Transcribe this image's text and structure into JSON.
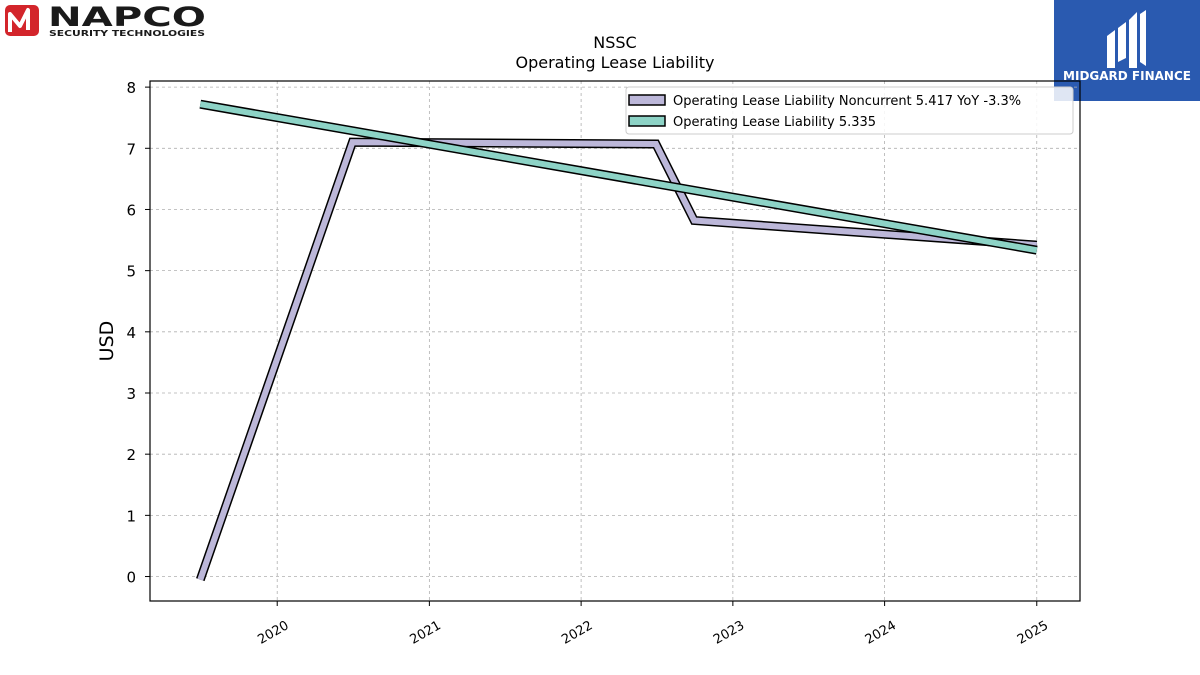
{
  "logos": {
    "left": {
      "name": "NAPCO",
      "tagline": "SECURITY TECHNOLOGIES"
    },
    "right": {
      "name": "MIDGARD FINANCE",
      "color": "#2a5ab0"
    }
  },
  "chart_data": {
    "type": "line",
    "title": "NSSC",
    "subtitle": "Operating Lease Liability",
    "xlabel": "",
    "ylabel": "USD",
    "xlim": [
      "2019-03-01",
      "2025-04-15"
    ],
    "ylim": [
      -0.4,
      8.1
    ],
    "x_ticks": [
      "2020",
      "2021",
      "2022",
      "2023",
      "2024",
      "2025"
    ],
    "y_ticks": [
      0,
      1,
      2,
      3,
      4,
      5,
      6,
      7,
      8
    ],
    "grid": true,
    "legend_position": "top-right",
    "series": [
      {
        "name": "Operating Lease Liability Noncurrent",
        "legend_label": "Operating Lease Liability Noncurrent  5.417 YoY -3.3%",
        "color": "#bcb7d9",
        "points": [
          {
            "x": "2019-06-30",
            "y": -0.05
          },
          {
            "x": "2020-06-30",
            "y": 7.1
          },
          {
            "x": "2022-06-30",
            "y": 7.07
          },
          {
            "x": "2022-09-30",
            "y": 5.82
          },
          {
            "x": "2025-01-01",
            "y": 5.417
          }
        ]
      },
      {
        "name": "Operating Lease Liability",
        "legend_label": "Operating Lease Liability  5.335",
        "color": "#8dd3c6",
        "points": [
          {
            "x": "2019-06-30",
            "y": 7.72
          },
          {
            "x": "2025-01-01",
            "y": 5.335
          }
        ]
      }
    ]
  }
}
